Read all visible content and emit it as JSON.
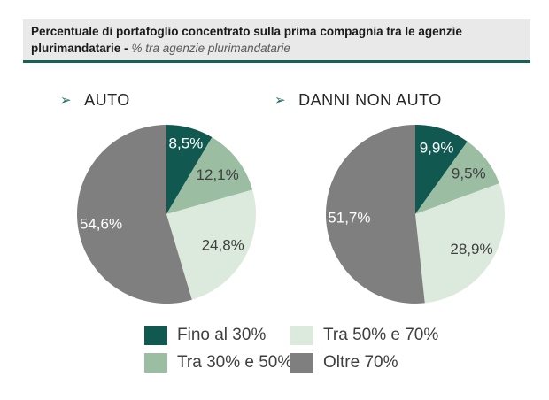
{
  "title": {
    "text_bold": "Percentuale di portafoglio concentrato sulla prima compagnia tra le agenzie plurimandatarie -",
    "text_italic": "% tra agenzie plurimandatarie"
  },
  "colors": {
    "title_bar_bg": "#e9e9e9",
    "title_underline": "#176157",
    "bullet_accent": "#1c6b63",
    "teal": "#115950",
    "medium_green": "#9bbea3",
    "light_green": "#dceadd",
    "gray": "#7f7f7f"
  },
  "icons": {
    "arrow_bullet": "➢"
  },
  "chart_data": [
    {
      "type": "pie",
      "title": "AUTO",
      "start_angle_deg": 0,
      "direction": "clockwise",
      "slices": [
        {
          "label": "Fino al 30%",
          "value": 8.5,
          "display": "8,5%",
          "color": "#115950",
          "label_color": "#ffffff",
          "label_r": 0.82
        },
        {
          "label": "Tra 30% e 50%",
          "value": 12.1,
          "display": "12,1%",
          "color": "#9bbea3",
          "label_color": "#3f3f3f",
          "label_r": 0.72
        },
        {
          "label": "Tra 50% e 70%",
          "value": 24.8,
          "display": "24,8%",
          "color": "#dceadd",
          "label_color": "#3f3f3f",
          "label_r": 0.72
        },
        {
          "label": "Oltre 70%",
          "value": 54.6,
          "display": "54,6%",
          "color": "#7f7f7f",
          "label_color": "#ffffff",
          "label_r": 0.74
        }
      ]
    },
    {
      "type": "pie",
      "title": "DANNI NON AUTO",
      "start_angle_deg": 0,
      "direction": "clockwise",
      "slices": [
        {
          "label": "Fino al 30%",
          "value": 9.9,
          "display": "9,9%",
          "color": "#115950",
          "label_color": "#ffffff",
          "label_r": 0.78
        },
        {
          "label": "Tra 30% e 50%",
          "value": 9.5,
          "display": "9,5%",
          "color": "#9bbea3",
          "label_color": "#3f3f3f",
          "label_r": 0.75
        },
        {
          "label": "Tra 50% e 70%",
          "value": 28.9,
          "display": "28,9%",
          "color": "#dceadd",
          "label_color": "#3f3f3f",
          "label_r": 0.74
        },
        {
          "label": "Oltre 70%",
          "value": 51.7,
          "display": "51,7%",
          "color": "#7f7f7f",
          "label_color": "#ffffff",
          "label_r": 0.74
        }
      ]
    }
  ],
  "legend": {
    "items": [
      {
        "label": "Fino al 30%",
        "color": "#115950"
      },
      {
        "label": "Tra 50% e 70%",
        "color": "#dceadd"
      },
      {
        "label": "Tra 30% e 50%",
        "color": "#9bbea3"
      },
      {
        "label": "Oltre 70%",
        "color": "#7f7f7f"
      }
    ]
  }
}
